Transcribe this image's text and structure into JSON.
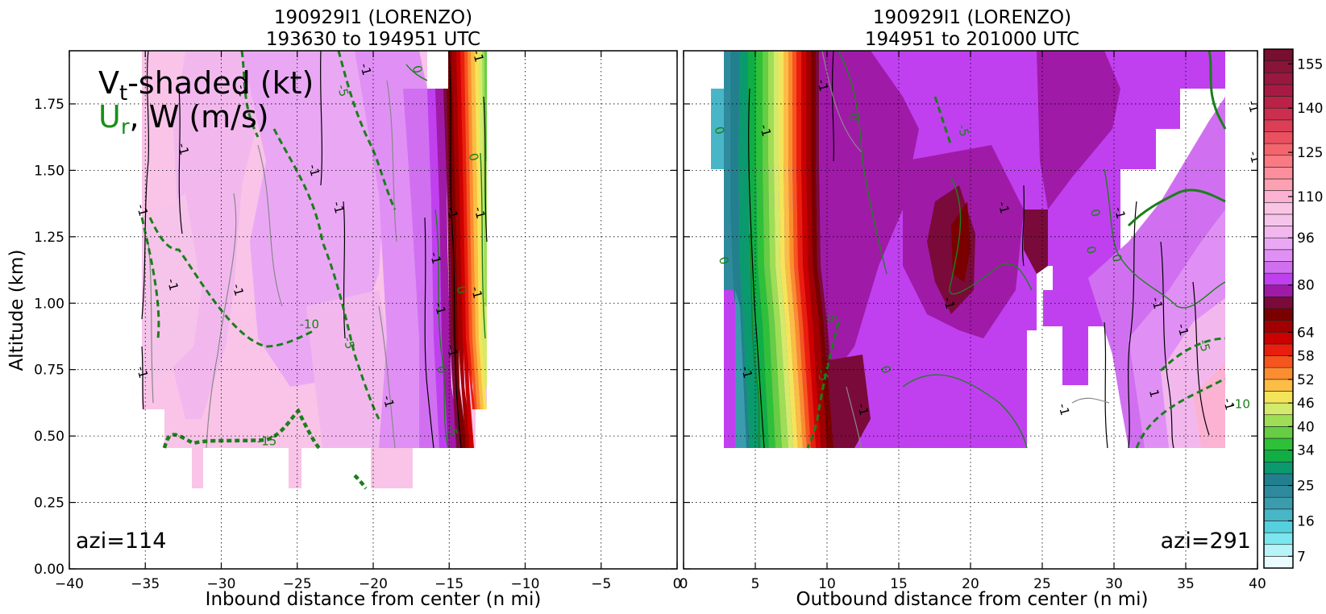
{
  "chart_data": [
    {
      "type": "heatmap",
      "panel": "left",
      "title_line1": "190929I1 (LORENZO)",
      "title_line2": "193630 to 194951 UTC",
      "xlabel": "Inbound distance from center (n mi)",
      "ylabel": "Altitude (km)",
      "xlim": [
        -40,
        0
      ],
      "ylim": [
        0.0,
        1.95
      ],
      "x_ticks": [
        "−40",
        "−35",
        "−30",
        "−25",
        "−20",
        "−15",
        "−10",
        "−5",
        "0"
      ],
      "y_ticks": [
        "0.00",
        "0.25",
        "0.50",
        "0.75",
        "1.00",
        "1.25",
        "1.50",
        "1.75"
      ],
      "grid": true,
      "annotation": "azi=114",
      "legend": {
        "vt_prefix": "V",
        "vt_sub": "t",
        "vt_suffix": "-shaded (kt)",
        "ur_prefix": "U",
        "ur_sub": "r",
        "ur_suffix": ", W (m/s)"
      },
      "contour_labels": [
        {
          "text": "-1",
          "x": -35.2,
          "y": 1.35
        },
        {
          "text": "-1",
          "x": -33.2,
          "y": 1.07
        },
        {
          "text": "-1",
          "x": -35.2,
          "y": 0.74
        },
        {
          "text": "-1",
          "x": -32.5,
          "y": 1.58
        },
        {
          "text": "-1",
          "x": -28.6,
          "y": 1.8
        },
        {
          "text": "-1",
          "x": -28.9,
          "y": 1.05
        },
        {
          "text": "-1",
          "x": -23.9,
          "y": 1.5
        },
        {
          "text": "-1",
          "x": -22.3,
          "y": 1.36
        },
        {
          "text": "-1",
          "x": -19.0,
          "y": 0.63
        },
        {
          "text": "-1",
          "x": -20.5,
          "y": 1.88
        },
        {
          "text": "0",
          "x": -17.1,
          "y": 1.88
        },
        {
          "text": "-1",
          "x": -15.9,
          "y": 1.17
        },
        {
          "text": "-1",
          "x": -14.8,
          "y": 1.34
        },
        {
          "text": "-1",
          "x": -15.6,
          "y": 0.98
        },
        {
          "text": "-1",
          "x": -13.1,
          "y": 1.93
        },
        {
          "text": "0",
          "x": -13.4,
          "y": 1.55
        },
        {
          "text": "-1",
          "x": -13.0,
          "y": 1.34
        },
        {
          "text": "-1",
          "x": -13.2,
          "y": 1.04
        },
        {
          "text": "0",
          "x": -14.2,
          "y": 1.05
        },
        {
          "text": "-1",
          "x": -14.8,
          "y": 0.82
        },
        {
          "text": "0",
          "x": -15.5,
          "y": 0.75
        },
        {
          "text": "-5",
          "x": -14.8,
          "y": 0.52
        },
        {
          "text": "-5",
          "x": -22.0,
          "y": 1.8
        },
        {
          "text": "-10",
          "x": -24.2,
          "y": 0.92
        },
        {
          "text": "-5",
          "x": -21.6,
          "y": 0.85
        },
        {
          "text": "-15",
          "x": -27.0,
          "y": 0.48
        }
      ]
    },
    {
      "type": "heatmap",
      "panel": "right",
      "title_line1": "190929I1 (LORENZO)",
      "title_line2": "194951 to 201000 UTC",
      "xlabel": "Outbound distance from center (n mi)",
      "ylabel": "",
      "xlim": [
        0,
        40
      ],
      "ylim": [
        0.0,
        1.95
      ],
      "x_ticks": [
        "0",
        "5",
        "10",
        "15",
        "20",
        "25",
        "30",
        "35",
        "40"
      ],
      "grid": true,
      "annotation": "azi=291",
      "contour_labels": [
        {
          "text": "0",
          "x": 2.5,
          "y": 1.65
        },
        {
          "text": "-1",
          "x": 5.7,
          "y": 1.65
        },
        {
          "text": "0",
          "x": 11.8,
          "y": 1.7
        },
        {
          "text": "-1",
          "x": 9.7,
          "y": 1.82
        },
        {
          "text": "-5",
          "x": 19.5,
          "y": 1.65
        },
        {
          "text": "-1",
          "x": 22.3,
          "y": 1.36
        },
        {
          "text": "-1",
          "x": 18.5,
          "y": 1.0
        },
        {
          "text": "0",
          "x": 2.8,
          "y": 1.16
        },
        {
          "text": "-1",
          "x": 4.4,
          "y": 0.74
        },
        {
          "text": "-5",
          "x": 10.3,
          "y": 0.95
        },
        {
          "text": "-5",
          "x": 9.7,
          "y": 0.73
        },
        {
          "text": "0",
          "x": 14.1,
          "y": 0.75
        },
        {
          "text": "-1",
          "x": 12.5,
          "y": 0.6
        },
        {
          "text": "0",
          "x": 28.7,
          "y": 1.34
        },
        {
          "text": "0",
          "x": 28.4,
          "y": 1.2
        },
        {
          "text": "-1",
          "x": 30.4,
          "y": 1.34
        },
        {
          "text": "0",
          "x": 30.2,
          "y": 1.17
        },
        {
          "text": "-1",
          "x": 33.0,
          "y": 1.0
        },
        {
          "text": "-1",
          "x": 34.8,
          "y": 0.9
        },
        {
          "text": "1",
          "x": 32.8,
          "y": 0.66
        },
        {
          "text": "-1",
          "x": 26.5,
          "y": 0.6
        },
        {
          "text": "-5",
          "x": 36.3,
          "y": 0.84
        },
        {
          "text": "-10",
          "x": 38.8,
          "y": 0.62
        },
        {
          "text": "-1",
          "x": 38.0,
          "y": 0.62
        },
        {
          "text": "-1",
          "x": 39.7,
          "y": 1.74
        },
        {
          "text": "-1",
          "x": 39.8,
          "y": 1.55
        }
      ]
    }
  ],
  "colorbar": {
    "levels": [
      4,
      7,
      10,
      13,
      16,
      19,
      22,
      25,
      28,
      31,
      34,
      37,
      40,
      43,
      46,
      49,
      52,
      55,
      58,
      61,
      64,
      68,
      72,
      76,
      80,
      84,
      88,
      92,
      96,
      100,
      104,
      108,
      112,
      116,
      120,
      124,
      128,
      132,
      136,
      140,
      144,
      148,
      152,
      156,
      160
    ],
    "colors": [
      "#e8fcff",
      "#b6f4f8",
      "#7ce6ef",
      "#55d0de",
      "#48b6c6",
      "#3a9cad",
      "#2e8a9c",
      "#22808e",
      "#0a9a6e",
      "#10ae44",
      "#2fc03a",
      "#66cd44",
      "#9ede56",
      "#d4ea6a",
      "#f4e45a",
      "#fbbd44",
      "#fb8c30",
      "#f4561e",
      "#ea1e0e",
      "#cc0000",
      "#a20000",
      "#7a0000",
      "#7a0a3a",
      "#a01aa8",
      "#c040f0",
      "#d070f0",
      "#e090f4",
      "#eaa8f4",
      "#f2b8ee",
      "#f6c4ea",
      "#fac4e4",
      "#fcb2d2",
      "#fca0b4",
      "#fc8e9e",
      "#fa7a84",
      "#f4646c",
      "#ea5060",
      "#dc3e56",
      "#cc2e4e",
      "#ba2248",
      "#a81a44",
      "#981840",
      "#881438",
      "#780e30"
    ],
    "tick_labels": [
      "7",
      "16",
      "25",
      "34",
      "40",
      "46",
      "52",
      "58",
      "64",
      "80",
      "96",
      "110",
      "125",
      "140",
      "155"
    ],
    "tick_values": [
      7,
      16,
      25,
      34,
      40,
      46,
      52,
      58,
      64,
      80,
      96,
      110,
      125,
      140,
      155
    ]
  }
}
